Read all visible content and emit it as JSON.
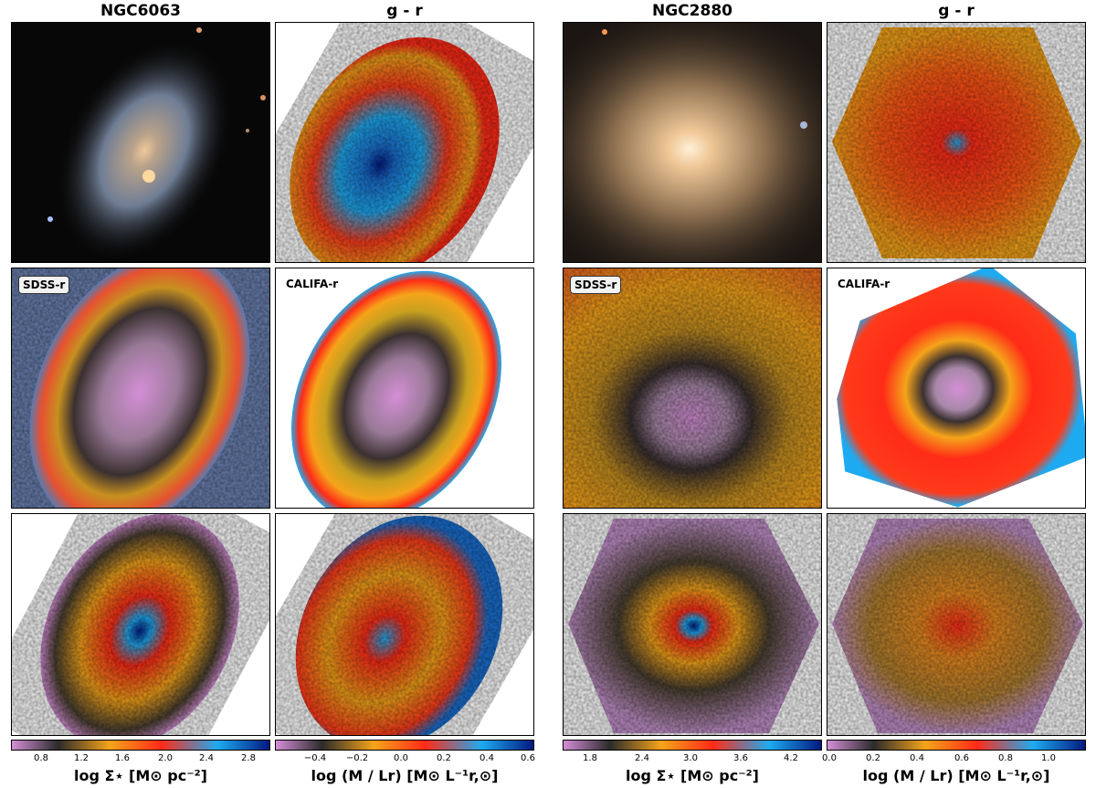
{
  "columns": [
    {
      "title": "NGC6063"
    },
    {
      "title": "g - r"
    },
    {
      "title": "NGC2880"
    },
    {
      "title": "g - r"
    }
  ],
  "panel_tags": {
    "sdss": "SDSS-r",
    "califa": "CALIFA-r"
  },
  "colorbars": [
    {
      "ticks": [
        "0.8",
        "1.2",
        "1.6",
        "2.0",
        "2.4",
        "2.8"
      ],
      "label": "log Σ⋆ [M⊙ pc⁻²]"
    },
    {
      "ticks": [
        "−0.4",
        "−0.2",
        "0.0",
        "0.2",
        "0.4",
        "0.6"
      ],
      "label": "log (M / Lr) [M⊙ L⁻¹r,⊙]"
    },
    {
      "ticks": [
        "1.8",
        "2.4",
        "3.0",
        "3.6",
        "4.2"
      ],
      "label": "log Σ⋆ [M⊙ pc⁻²]"
    },
    {
      "ticks": [
        "0.0",
        "0.2",
        "0.4",
        "0.6",
        "0.8",
        "1.0"
      ],
      "label": "log (M / Lr) [M⊙ L⁻¹r,⊙]"
    }
  ],
  "colors": {
    "colormap": [
      "#d48fd6",
      "#2b2b2b",
      "#f5a41a",
      "#ff2b17",
      "#1eaaf0",
      "#021a80"
    ]
  }
}
